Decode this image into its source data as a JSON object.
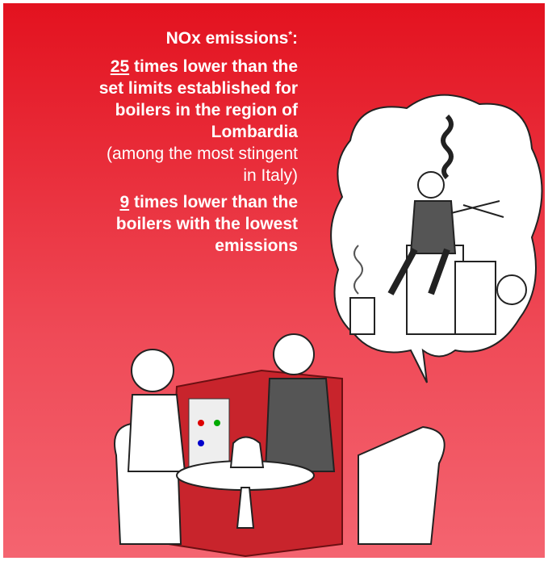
{
  "title": {
    "text": "NOx emissions",
    "sup": "*",
    "suffix": ":"
  },
  "paragraph_1": {
    "number": "25",
    "lines": [
      " times lower than the",
      "set limits established for",
      "boilers in the region of",
      "Lombardia"
    ],
    "note_lines": [
      "(among the most stingent",
      "in Italy)"
    ]
  },
  "paragraph_2": {
    "number": "9",
    "lines": [
      " times lower than the",
      "boilers with the lowest",
      "emissions"
    ]
  }
}
